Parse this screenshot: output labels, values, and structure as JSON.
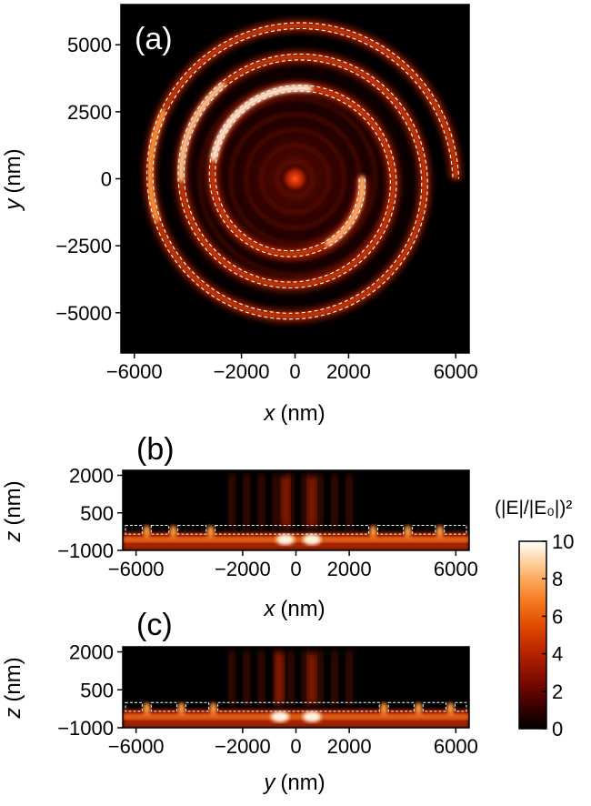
{
  "chart_data": [
    {
      "panel": "(a)",
      "type": "heatmap",
      "xlabel_var": "x",
      "xlabel_unit": "(nm)",
      "ylabel_var": "y",
      "ylabel_unit": "(nm)",
      "xlim": [
        -6500,
        6500
      ],
      "ylim": [
        -6500,
        6500
      ],
      "xticks": [
        -6000,
        -2000,
        0,
        2000,
        6000
      ],
      "xticklabels": [
        "−6000",
        "−2000",
        "0",
        "2000",
        "6000"
      ],
      "yticks": [
        5000,
        2500,
        0,
        -2500,
        -5000
      ],
      "yticklabels": [
        "5000",
        "2500",
        "0",
        "−2500",
        "−5000"
      ],
      "structure": "spiral grating outline (dashed)",
      "spiral_turns": 3,
      "spiral_inner_radius_nm": 2500,
      "spiral_outer_radius_nm": 6000
    },
    {
      "panel": "(b)",
      "type": "heatmap",
      "xlabel_var": "x",
      "xlabel_unit": "(nm)",
      "ylabel_var": "z",
      "ylabel_unit": "(nm)",
      "xlim": [
        -6500,
        6500
      ],
      "ylim": [
        -1000,
        2200
      ],
      "xticks": [
        -6000,
        -2000,
        0,
        2000,
        6000
      ],
      "xticklabels": [
        "−6000",
        "−2000",
        "0",
        "2000",
        "6000"
      ],
      "yticks": [
        2000,
        500,
        -1000
      ],
      "yticklabels": [
        "2000",
        "500",
        "−1000"
      ],
      "slab_positions_nm": [
        -5600,
        -4600,
        -3200,
        2900,
        4200,
        5400
      ],
      "hot_spots_nm": [
        -400,
        600
      ]
    },
    {
      "panel": "(c)",
      "type": "heatmap",
      "xlabel_var": "y",
      "xlabel_unit": "(nm)",
      "ylabel_var": "z",
      "ylabel_unit": "(nm)",
      "xlim": [
        -6500,
        6500
      ],
      "ylim": [
        -1000,
        2200
      ],
      "xticks": [
        -6000,
        -2000,
        0,
        2000,
        6000
      ],
      "xticklabels": [
        "−6000",
        "−2000",
        "0",
        "2000",
        "6000"
      ],
      "yticks": [
        2000,
        500,
        -1000
      ],
      "yticklabels": [
        "2000",
        "500",
        "−1000"
      ],
      "slab_positions_nm": [
        -5600,
        -4300,
        -3100,
        3300,
        4600,
        5800
      ],
      "hot_spots_nm": [
        -600,
        600
      ]
    }
  ],
  "colorbar": {
    "label": "(|E|/|E₀|)²",
    "min": 0,
    "max": 10,
    "ticks": [
      0,
      2,
      4,
      6,
      8,
      10
    ],
    "ticklabels": [
      "0",
      "2",
      "4",
      "6",
      "8",
      "10"
    ],
    "colormap": [
      "#000000",
      "#3a0000",
      "#7a0a00",
      "#b52200",
      "#e04a00",
      "#f47a20",
      "#fcaa60",
      "#fdd6a8",
      "#ffffff"
    ]
  }
}
